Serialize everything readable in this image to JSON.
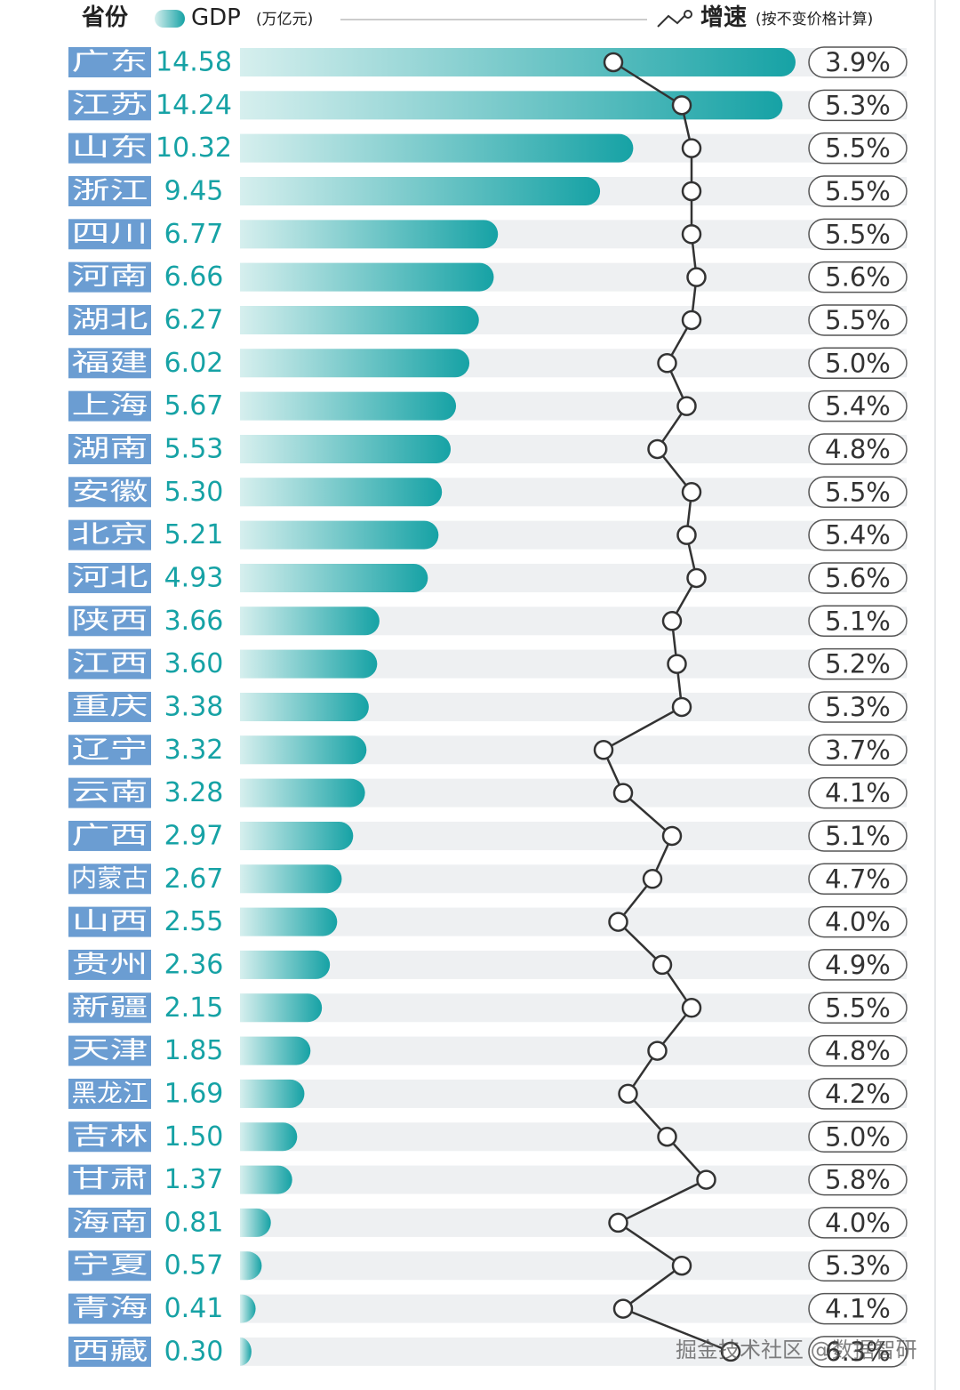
{
  "chart_data": {
    "type": "bar",
    "category_label": "省份",
    "categories": [
      "广东",
      "江苏",
      "山东",
      "浙江",
      "四川",
      "河南",
      "湖北",
      "福建",
      "上海",
      "湖南",
      "安徽",
      "北京",
      "河北",
      "陕西",
      "江西",
      "重庆",
      "辽宁",
      "云南",
      "广西",
      "内蒙古",
      "山西",
      "贵州",
      "新疆",
      "天津",
      "黑龙江",
      "吉林",
      "甘肃",
      "海南",
      "宁夏",
      "青海",
      "西藏"
    ],
    "series": [
      {
        "name": "GDP",
        "unit_label": "(万亿元)",
        "color": "#16a2a5",
        "type": "bar",
        "values": [
          14.58,
          14.24,
          10.32,
          9.45,
          6.77,
          6.66,
          6.27,
          6.02,
          5.67,
          5.53,
          5.3,
          5.21,
          4.93,
          3.66,
          3.6,
          3.38,
          3.32,
          3.28,
          2.97,
          2.67,
          2.55,
          2.36,
          2.15,
          1.85,
          1.69,
          1.5,
          1.37,
          0.81,
          0.57,
          0.41,
          0.3
        ],
        "value_labels": [
          "14.58",
          "14.24",
          "10.32",
          "9.45",
          "6.77",
          "6.66",
          "6.27",
          "6.02",
          "5.67",
          "5.53",
          "5.30",
          "5.21",
          "4.93",
          "3.66",
          "3.60",
          "3.38",
          "3.32",
          "3.28",
          "2.97",
          "2.67",
          "2.55",
          "2.36",
          "2.15",
          "1.85",
          "1.69",
          "1.50",
          "1.37",
          "0.81",
          "0.57",
          "0.41",
          "0.30"
        ]
      },
      {
        "name": "增速",
        "unit_label": "(按不变价格计算)",
        "color": "#333333",
        "type": "line",
        "values": [
          3.9,
          5.3,
          5.5,
          5.5,
          5.5,
          5.6,
          5.5,
          5.0,
          5.4,
          4.8,
          5.5,
          5.4,
          5.6,
          5.1,
          5.2,
          5.3,
          3.7,
          4.1,
          5.1,
          4.7,
          4.0,
          4.9,
          5.5,
          4.8,
          4.2,
          5.0,
          5.8,
          4.0,
          5.3,
          4.1,
          6.3
        ],
        "value_labels": [
          "3.9%",
          "5.3%",
          "5.5%",
          "5.5%",
          "5.5%",
          "5.6%",
          "5.5%",
          "5.0%",
          "5.4%",
          "4.8%",
          "5.5%",
          "5.4%",
          "5.6%",
          "5.1%",
          "5.2%",
          "5.3%",
          "3.7%",
          "4.1%",
          "5.1%",
          "4.7%",
          "4.0%",
          "4.9%",
          "5.5%",
          "4.8%",
          "4.2%",
          "5.0%",
          "5.8%",
          "4.0%",
          "5.3%",
          "4.1%",
          "6.3%"
        ]
      }
    ],
    "watermark": "掘金技术社区 @数据智研"
  }
}
